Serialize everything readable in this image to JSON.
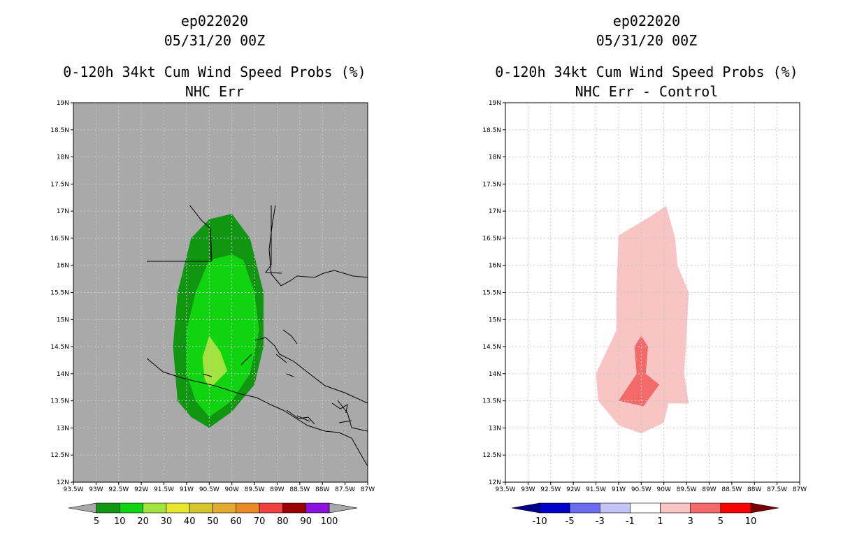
{
  "chart_data": [
    {
      "type": "map",
      "panel": "left",
      "title_lines": [
        "ep022020",
        "05/31/20 00Z",
        "0-120h 34kt Cum Wind Speed Probs (%)",
        "NHC Err"
      ],
      "xlim": [
        -93.5,
        -87.0
      ],
      "ylim": [
        12.0,
        19.0
      ],
      "x_ticks": [
        {
          "v": -93.5,
          "label": "93.5W"
        },
        {
          "v": -93.0,
          "label": "93W"
        },
        {
          "v": -92.5,
          "label": "92.5W"
        },
        {
          "v": -92.0,
          "label": "92W"
        },
        {
          "v": -91.5,
          "label": "91.5W"
        },
        {
          "v": -91.0,
          "label": "91W"
        },
        {
          "v": -90.5,
          "label": "90.5W"
        },
        {
          "v": -90.0,
          "label": "90W"
        },
        {
          "v": -89.5,
          "label": "89.5W"
        },
        {
          "v": -89.0,
          "label": "89W"
        },
        {
          "v": -88.5,
          "label": "88.5W"
        },
        {
          "v": -88.0,
          "label": "88W"
        },
        {
          "v": -87.5,
          "label": "87.5W"
        },
        {
          "v": -87.0,
          "label": "87W"
        }
      ],
      "y_ticks": [
        {
          "v": 12.0,
          "label": "12N"
        },
        {
          "v": 12.5,
          "label": "12.5N"
        },
        {
          "v": 13.0,
          "label": "13N"
        },
        {
          "v": 13.5,
          "label": "13.5N"
        },
        {
          "v": 14.0,
          "label": "14N"
        },
        {
          "v": 14.5,
          "label": "14.5N"
        },
        {
          "v": 15.0,
          "label": "15N"
        },
        {
          "v": 15.5,
          "label": "15.5N"
        },
        {
          "v": 16.0,
          "label": "16N"
        },
        {
          "v": 16.5,
          "label": "16.5N"
        },
        {
          "v": 17.0,
          "label": "17N"
        },
        {
          "v": 17.5,
          "label": "17.5N"
        },
        {
          "v": 18.0,
          "label": "18N"
        },
        {
          "v": 18.5,
          "label": "18.5N"
        },
        {
          "v": 19.0,
          "label": "19N"
        }
      ],
      "background": "#a9a9a9",
      "grid": true,
      "grid_color": "#c8c8c8",
      "contours": [
        {
          "level": "5-10",
          "color": "#119611",
          "points": [
            [
              -90.5,
              13.0
            ],
            [
              -90.0,
              13.3
            ],
            [
              -89.5,
              13.8
            ],
            [
              -89.3,
              14.5
            ],
            [
              -89.3,
              15.5
            ],
            [
              -89.6,
              16.5
            ],
            [
              -90.0,
              16.95
            ],
            [
              -90.5,
              16.85
            ],
            [
              -90.9,
              16.5
            ],
            [
              -91.2,
              15.5
            ],
            [
              -91.3,
              14.5
            ],
            [
              -91.2,
              13.5
            ],
            [
              -90.9,
              13.2
            ]
          ]
        },
        {
          "level": "10-20",
          "color": "#11d411",
          "points": [
            [
              -90.5,
              13.2
            ],
            [
              -90.0,
              13.5
            ],
            [
              -89.6,
              14.0
            ],
            [
              -89.4,
              14.8
            ],
            [
              -89.5,
              15.5
            ],
            [
              -89.75,
              16.1
            ],
            [
              -90.0,
              16.2
            ],
            [
              -90.5,
              16.1
            ],
            [
              -90.8,
              15.5
            ],
            [
              -91.0,
              14.8
            ],
            [
              -91.0,
              14.0
            ],
            [
              -90.8,
              13.5
            ]
          ]
        },
        {
          "level": "20-30",
          "color": "#a2e33d",
          "points": [
            [
              -90.5,
              14.7
            ],
            [
              -90.25,
              14.4
            ],
            [
              -90.1,
              14.05
            ],
            [
              -90.4,
              13.8
            ],
            [
              -90.5,
              13.75
            ],
            [
              -90.6,
              13.9
            ],
            [
              -90.65,
              14.3
            ]
          ]
        }
      ],
      "colorbar": {
        "labels": [
          "5",
          "10",
          "20",
          "30",
          "40",
          "50",
          "60",
          "70",
          "80",
          "90",
          "100"
        ],
        "colors": [
          "#119611",
          "#11d411",
          "#a2e33d",
          "#e6e62f",
          "#d4c62b",
          "#e3ab2f",
          "#eb8a29",
          "#f04040",
          "#9a0000",
          "#8c11e0"
        ],
        "low_arrow_color": "#a9a9a9",
        "high_arrow_color": "#a9a9a9"
      }
    },
    {
      "type": "map",
      "panel": "right",
      "title_lines": [
        "ep022020",
        "05/31/20 00Z",
        "0-120h 34kt Cum Wind Speed Probs (%)",
        "NHC Err - Control"
      ],
      "xlim": [
        -93.5,
        -87.0
      ],
      "ylim": [
        12.0,
        19.0
      ],
      "x_ticks": [
        {
          "v": -93.5,
          "label": "93.5W"
        },
        {
          "v": -93.0,
          "label": "93W"
        },
        {
          "v": -92.5,
          "label": "92.5W"
        },
        {
          "v": -92.0,
          "label": "92W"
        },
        {
          "v": -91.5,
          "label": "91.5W"
        },
        {
          "v": -91.0,
          "label": "91W"
        },
        {
          "v": -90.5,
          "label": "90.5W"
        },
        {
          "v": -90.0,
          "label": "90W"
        },
        {
          "v": -89.5,
          "label": "89.5W"
        },
        {
          "v": -89.0,
          "label": "89W"
        },
        {
          "v": -88.5,
          "label": "88.5W"
        },
        {
          "v": -88.0,
          "label": "88W"
        },
        {
          "v": -87.5,
          "label": "87.5W"
        },
        {
          "v": -87.0,
          "label": "87W"
        }
      ],
      "y_ticks": [
        {
          "v": 12.0,
          "label": "12N"
        },
        {
          "v": 12.5,
          "label": "12.5N"
        },
        {
          "v": 13.0,
          "label": "13N"
        },
        {
          "v": 13.5,
          "label": "13.5N"
        },
        {
          "v": 14.0,
          "label": "14N"
        },
        {
          "v": 14.5,
          "label": "14.5N"
        },
        {
          "v": 15.0,
          "label": "15N"
        },
        {
          "v": 15.5,
          "label": "15.5N"
        },
        {
          "v": 16.0,
          "label": "16N"
        },
        {
          "v": 16.5,
          "label": "16.5N"
        },
        {
          "v": 17.0,
          "label": "17N"
        },
        {
          "v": 17.5,
          "label": "17.5N"
        },
        {
          "v": 18.0,
          "label": "18N"
        },
        {
          "v": 18.5,
          "label": "18.5N"
        },
        {
          "v": 19.0,
          "label": "19N"
        }
      ],
      "background": "#ffffff",
      "grid": true,
      "grid_color": "#c8c8c8",
      "contours": [
        {
          "level": "1-3",
          "color": "#f9c4c4",
          "points": [
            [
              -90.5,
              12.9
            ],
            [
              -90.0,
              13.1
            ],
            [
              -89.9,
              13.45
            ],
            [
              -89.45,
              13.45
            ],
            [
              -89.55,
              14.0
            ],
            [
              -89.5,
              14.7
            ],
            [
              -89.45,
              15.5
            ],
            [
              -89.7,
              16.0
            ],
            [
              -89.75,
              16.5
            ],
            [
              -89.95,
              17.1
            ],
            [
              -90.3,
              16.9
            ],
            [
              -91.0,
              16.55
            ],
            [
              -91.05,
              15.5
            ],
            [
              -91.05,
              14.8
            ],
            [
              -91.5,
              14.0
            ],
            [
              -91.45,
              13.5
            ],
            [
              -91.0,
              13.05
            ]
          ]
        },
        {
          "level": "3-5",
          "color": "#f26a6a",
          "points": [
            [
              -90.5,
              14.7
            ],
            [
              -90.35,
              14.5
            ],
            [
              -90.4,
              14.0
            ],
            [
              -90.1,
              13.8
            ],
            [
              -90.45,
              13.4
            ],
            [
              -91.0,
              13.5
            ],
            [
              -90.6,
              14.0
            ],
            [
              -90.65,
              14.5
            ]
          ]
        }
      ],
      "colorbar": {
        "labels": [
          "-10",
          "-5",
          "-3",
          "-1",
          "1",
          "3",
          "5",
          "10"
        ],
        "colors": [
          "#0000c8",
          "#6b6bf0",
          "#c4c4f8",
          "#ffffff",
          "#f9c4c4",
          "#f26a6a",
          "#ff0000"
        ],
        "low_arrow_color": "#00008b",
        "high_arrow_color": "#7a0000"
      }
    }
  ]
}
